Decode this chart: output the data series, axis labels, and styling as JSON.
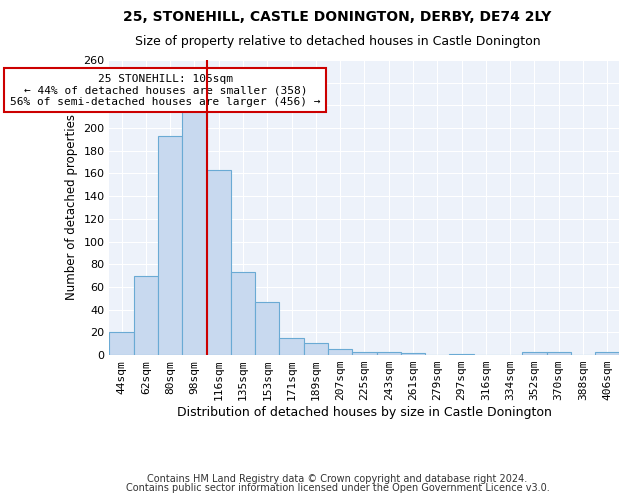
{
  "title1": "25, STONEHILL, CASTLE DONINGTON, DERBY, DE74 2LY",
  "title2": "Size of property relative to detached houses in Castle Donington",
  "xlabel": "Distribution of detached houses by size in Castle Donington",
  "ylabel": "Number of detached properties",
  "categories": [
    "44sqm",
    "62sqm",
    "80sqm",
    "98sqm",
    "116sqm",
    "135sqm",
    "153sqm",
    "171sqm",
    "189sqm",
    "207sqm",
    "225sqm",
    "243sqm",
    "261sqm",
    "279sqm",
    "297sqm",
    "316sqm",
    "334sqm",
    "352sqm",
    "370sqm",
    "388sqm",
    "406sqm"
  ],
  "values": [
    20,
    70,
    193,
    215,
    163,
    73,
    47,
    15,
    11,
    5,
    3,
    3,
    2,
    0,
    1,
    0,
    0,
    3,
    3,
    0,
    3
  ],
  "bar_color": "#c8d9ef",
  "bar_edge_color": "#6aaad4",
  "vline_color": "#cc0000",
  "annotation_text": "25 STONEHILL: 105sqm\n← 44% of detached houses are smaller (358)\n56% of semi-detached houses are larger (456) →",
  "annotation_box_color": "#ffffff",
  "annotation_box_edge_color": "#cc0000",
  "footer1": "Contains HM Land Registry data © Crown copyright and database right 2024.",
  "footer2": "Contains public sector information licensed under the Open Government Licence v3.0.",
  "ylim": [
    0,
    260
  ],
  "yticks": [
    0,
    20,
    40,
    60,
    80,
    100,
    120,
    140,
    160,
    180,
    200,
    220,
    240,
    260
  ],
  "bg_color": "#ffffff",
  "plot_bg_color": "#edf2fa",
  "grid_color": "#ffffff",
  "title1_fontsize": 10,
  "title2_fontsize": 9,
  "xlabel_fontsize": 9,
  "ylabel_fontsize": 8.5,
  "tick_fontsize": 8,
  "footer_fontsize": 7,
  "annotation_fontsize": 8,
  "vline_bar_index": 3
}
